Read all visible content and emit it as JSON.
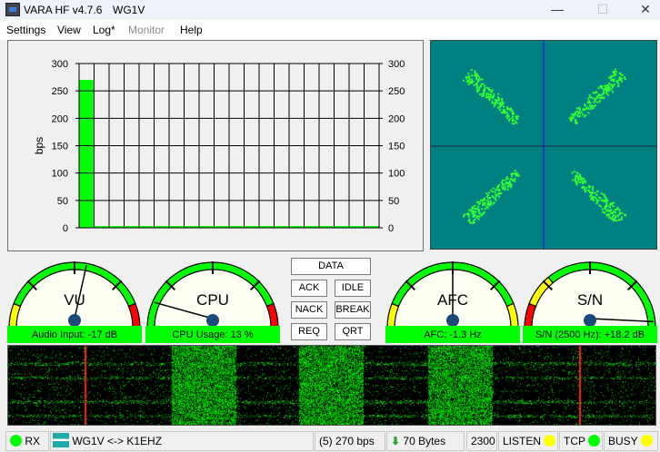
{
  "window": {
    "title": "VARA HF v4.7.6",
    "callsign": "WG1V",
    "minimize_icon": "minimize-icon",
    "maximize_icon": "maximize-icon",
    "close_icon": "close-icon"
  },
  "menu": [
    {
      "label": "Settings",
      "enabled": true
    },
    {
      "label": "View",
      "enabled": true
    },
    {
      "label": "Log*",
      "enabled": true
    },
    {
      "label": "Monitor",
      "enabled": false
    },
    {
      "label": "Help",
      "enabled": true
    }
  ],
  "chart_data": {
    "type": "bar",
    "ylabel": "bps",
    "ylim": [
      0,
      300
    ],
    "yticks": [
      "0",
      "50",
      "100",
      "150",
      "200",
      "250",
      "300"
    ],
    "values": [
      270,
      0,
      0,
      0,
      0,
      0,
      0,
      0,
      0,
      0,
      0,
      0,
      0,
      0,
      0,
      0,
      0,
      0,
      0,
      0
    ],
    "bar_color": "#00ff00",
    "grid": true,
    "right_axis": true
  },
  "constellation": {
    "background": "#008080",
    "point_color": "#33ff33",
    "quadrants": 4
  },
  "gauges": [
    {
      "title": "VU",
      "label": "Audio Input: -17 dB",
      "needle_fraction": 0.56,
      "zones": [
        "yellow",
        "green",
        "red"
      ]
    },
    {
      "title": "CPU",
      "label": "CPU Usage: 13 %",
      "needle_fraction": 0.13,
      "zones": [
        "green",
        "red"
      ]
    },
    {
      "title": "AFC",
      "label": "AFC: -1.3 Hz",
      "needle_fraction": 0.5,
      "zones": [
        "yellow",
        "green",
        "yellow"
      ]
    },
    {
      "title": "S/N",
      "label": "S/N (2500 Hz): +18.2 dB",
      "needle_fraction": 0.97,
      "zones": [
        "red",
        "yellow",
        "green"
      ]
    }
  ],
  "frame_buttons": {
    "data": "DATA",
    "ack": "ACK",
    "idle": "IDLE",
    "nack": "NACK",
    "break": "BREAK",
    "req": "REQ",
    "qrt": "QRT"
  },
  "status": {
    "rx": "RX",
    "rx_color": "#00ff00",
    "link": "WG1V <-> K1EHZ",
    "speed": "(5)  270 bps",
    "bytes": "70 Bytes",
    "bandwidth": "2300",
    "listen": "LISTEN",
    "listen_color": "#ffff00",
    "tcp": "TCP",
    "tcp_color": "#00ff00",
    "busy": "BUSY",
    "busy_color": "#ffff00"
  }
}
